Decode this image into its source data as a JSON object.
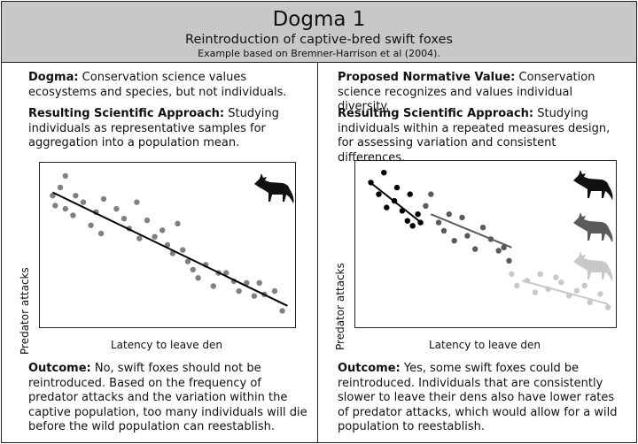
{
  "header": {
    "title": "Dogma 1",
    "subtitle": "Reintroduction of captive-bred swift foxes",
    "note": "Example based on Bremner-Harrison et al (2004)."
  },
  "left": {
    "dogma_label": "Dogma:",
    "dogma_text": " Conservation science values ecosystems and species, but not individuals.",
    "approach_label": "Resulting Scientific Approach:",
    "approach_text": " Studying individuals as representative samples for aggregation into a population mean.",
    "outcome_label": "Outcome:",
    "outcome_text": " No, swift foxes should not be reintroduced. Based on the frequency of predator attacks and the variation within the captive population, too many individuals will die before the wild population can reestablish."
  },
  "right": {
    "value_label": "Proposed Normative Value:",
    "value_text": " Conservation science recognizes and values individual diversity.",
    "approach_label": "Resulting Scientific Approach:",
    "approach_text": " Studying individuals within a repeated measures design, for assessing variation and consistent differences.",
    "outcome_label": "Outcome:",
    "outcome_text": " Yes, some swift foxes could be reintroduced. Individuals that are consistently slower to leave their dens also have lower rates of predator attacks, which would allow for a wild population to reestablish."
  },
  "chart_data": [
    {
      "type": "scatter",
      "xlabel": "Latency to leave den",
      "ylabel": "Predator attacks",
      "point_color": "#808080",
      "line_color": "#000000",
      "points": [
        [
          0.05,
          0.8
        ],
        [
          0.08,
          0.85
        ],
        [
          0.1,
          0.92
        ],
        [
          0.06,
          0.74
        ],
        [
          0.1,
          0.72
        ],
        [
          0.14,
          0.8
        ],
        [
          0.17,
          0.76
        ],
        [
          0.13,
          0.68
        ],
        [
          0.2,
          0.62
        ],
        [
          0.22,
          0.7
        ],
        [
          0.25,
          0.78
        ],
        [
          0.24,
          0.57
        ],
        [
          0.3,
          0.72
        ],
        [
          0.33,
          0.66
        ],
        [
          0.35,
          0.6
        ],
        [
          0.38,
          0.76
        ],
        [
          0.39,
          0.54
        ],
        [
          0.42,
          0.65
        ],
        [
          0.45,
          0.55
        ],
        [
          0.48,
          0.59
        ],
        [
          0.5,
          0.5
        ],
        [
          0.52,
          0.45
        ],
        [
          0.54,
          0.63
        ],
        [
          0.56,
          0.47
        ],
        [
          0.58,
          0.4
        ],
        [
          0.6,
          0.35
        ],
        [
          0.62,
          0.3
        ],
        [
          0.65,
          0.38
        ],
        [
          0.68,
          0.25
        ],
        [
          0.7,
          0.33
        ],
        [
          0.73,
          0.33
        ],
        [
          0.76,
          0.28
        ],
        [
          0.78,
          0.22
        ],
        [
          0.81,
          0.27
        ],
        [
          0.84,
          0.19
        ],
        [
          0.86,
          0.27
        ],
        [
          0.88,
          0.2
        ],
        [
          0.92,
          0.22
        ],
        [
          0.95,
          0.1
        ]
      ],
      "trend": [
        [
          0.05,
          0.82
        ],
        [
          0.97,
          0.13
        ]
      ]
    },
    {
      "type": "scatter",
      "xlabel": "Latency to leave den",
      "ylabel": "Predator attacks",
      "series": [
        {
          "color": "#000000",
          "icon": "black-fox-icon",
          "points": [
            [
              0.06,
              0.87
            ],
            [
              0.09,
              0.8
            ],
            [
              0.11,
              0.93
            ],
            [
              0.12,
              0.72
            ],
            [
              0.15,
              0.76
            ],
            [
              0.16,
              0.84
            ],
            [
              0.18,
              0.7
            ],
            [
              0.2,
              0.64
            ],
            [
              0.21,
              0.8
            ],
            [
              0.22,
              0.61
            ],
            [
              0.24,
              0.68
            ],
            [
              0.25,
              0.63
            ]
          ],
          "trend": [
            [
              0.05,
              0.88
            ],
            [
              0.26,
              0.62
            ]
          ]
        },
        {
          "color": "#5a5a5a",
          "icon": "gray-fox-icon",
          "points": [
            [
              0.27,
              0.73
            ],
            [
              0.29,
              0.8
            ],
            [
              0.32,
              0.63
            ],
            [
              0.34,
              0.58
            ],
            [
              0.36,
              0.68
            ],
            [
              0.38,
              0.52
            ],
            [
              0.41,
              0.66
            ],
            [
              0.43,
              0.55
            ],
            [
              0.46,
              0.47
            ],
            [
              0.49,
              0.6
            ],
            [
              0.52,
              0.53
            ],
            [
              0.55,
              0.46
            ],
            [
              0.57,
              0.48
            ],
            [
              0.59,
              0.4
            ]
          ],
          "trend": [
            [
              0.29,
              0.68
            ],
            [
              0.6,
              0.48
            ]
          ]
        },
        {
          "color": "#c8c8c8",
          "icon": "light-fox-icon",
          "points": [
            [
              0.6,
              0.32
            ],
            [
              0.62,
              0.25
            ],
            [
              0.66,
              0.28
            ],
            [
              0.69,
              0.21
            ],
            [
              0.71,
              0.32
            ],
            [
              0.74,
              0.23
            ],
            [
              0.77,
              0.3
            ],
            [
              0.79,
              0.27
            ],
            [
              0.82,
              0.19
            ],
            [
              0.85,
              0.22
            ],
            [
              0.88,
              0.25
            ],
            [
              0.9,
              0.15
            ],
            [
              0.94,
              0.2
            ],
            [
              0.97,
              0.12
            ]
          ],
          "trend": [
            [
              0.64,
              0.28
            ],
            [
              0.97,
              0.14
            ]
          ]
        }
      ]
    }
  ]
}
